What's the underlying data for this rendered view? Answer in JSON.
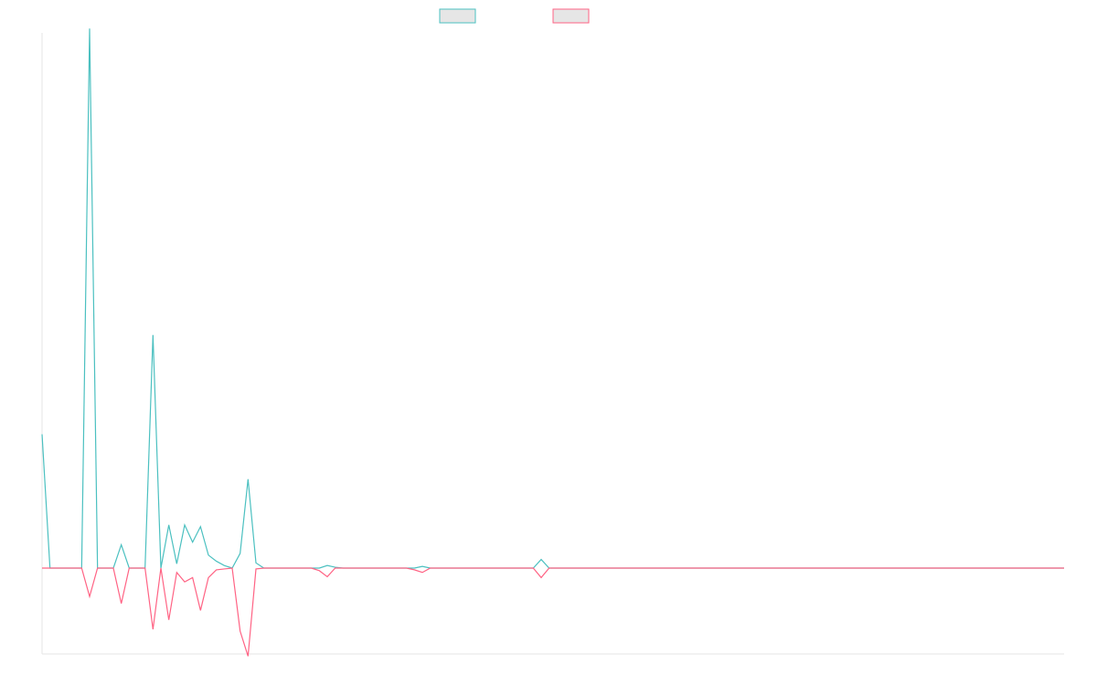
{
  "chart_data": {
    "type": "line",
    "title": "",
    "xlabel": "",
    "ylabel": "",
    "grid": false,
    "legend_position": "top-center",
    "colors": {
      "series_a": "#4bc0c0",
      "series_b": "#ff6384",
      "legend_fill": "#e6e6e6",
      "axis": "#e5e5e5"
    },
    "ylim": [
      -100,
      620
    ],
    "x": [
      0,
      1,
      2,
      3,
      4,
      5,
      6,
      7,
      8,
      9,
      10,
      11,
      12,
      13,
      14,
      15,
      16,
      17,
      18,
      19,
      20,
      21,
      22,
      23,
      24,
      25,
      26,
      27,
      28,
      29,
      30,
      31,
      32,
      33,
      34,
      35,
      36,
      37,
      38,
      39,
      40,
      41,
      42,
      43,
      44,
      45,
      46,
      47,
      48,
      49,
      50,
      51,
      52,
      53,
      54,
      55,
      56,
      57,
      58,
      59,
      60,
      61,
      62,
      63,
      64,
      65,
      66,
      67,
      68,
      69,
      70,
      71,
      72,
      73,
      74,
      75,
      76,
      77,
      78,
      79,
      80,
      81,
      82,
      83,
      84,
      85,
      86,
      87,
      88,
      89,
      90,
      91,
      92,
      93,
      94,
      95,
      96,
      97,
      98,
      99,
      100,
      101,
      102,
      103,
      104,
      105,
      106,
      107,
      108,
      109,
      110,
      111,
      112,
      113,
      114,
      115,
      116,
      117,
      118,
      119,
      120,
      121,
      122,
      123,
      124,
      125,
      126,
      127,
      128,
      129
    ],
    "series": [
      {
        "values": [
          155,
          0,
          0,
          0,
          0,
          0,
          625,
          0,
          0,
          0,
          27,
          0,
          0,
          0,
          270,
          0,
          50,
          5,
          50,
          30,
          48,
          15,
          8,
          3,
          0,
          17,
          103,
          6,
          0,
          0,
          0,
          0,
          0,
          0,
          0,
          0,
          3,
          1,
          0,
          0,
          0,
          0,
          0,
          0,
          0,
          0,
          0,
          0,
          2,
          0,
          0,
          0,
          0,
          0,
          0,
          0,
          0,
          0,
          0,
          0,
          0,
          0,
          0,
          10,
          0,
          0,
          0,
          0,
          0,
          0,
          0,
          0,
          0,
          0,
          0,
          0,
          0,
          0,
          0,
          0,
          0,
          0,
          0,
          0,
          0,
          0,
          0,
          0,
          0,
          0,
          0,
          0,
          0,
          0,
          0,
          0,
          0,
          0,
          0,
          0,
          0,
          0,
          0,
          0,
          0,
          0,
          0,
          0,
          0,
          0,
          0,
          0,
          0,
          0,
          0,
          0,
          0,
          0,
          0,
          0,
          0,
          0,
          0,
          0,
          0,
          0,
          0,
          0,
          0,
          0
        ]
      },
      {
        "values": [
          0,
          0,
          0,
          0,
          0,
          0,
          -33,
          0,
          0,
          0,
          -41,
          0,
          0,
          0,
          -71,
          0,
          -60,
          -5,
          -16,
          -11,
          -49,
          -11,
          -2,
          -1,
          0,
          -73,
          -102,
          -1,
          0,
          0,
          0,
          0,
          0,
          0,
          0,
          -3,
          -10,
          0,
          0,
          0,
          0,
          0,
          0,
          0,
          0,
          0,
          0,
          -2,
          -5,
          0,
          0,
          0,
          0,
          0,
          0,
          0,
          0,
          0,
          0,
          0,
          0,
          0,
          0,
          -11,
          0,
          0,
          0,
          0,
          0,
          0,
          0,
          0,
          0,
          0,
          0,
          0,
          0,
          0,
          0,
          0,
          0,
          0,
          0,
          0,
          0,
          0,
          0,
          0,
          0,
          0,
          0,
          0,
          0,
          0,
          0,
          0,
          0,
          0,
          0,
          0,
          0,
          0,
          0,
          0,
          0,
          0,
          0,
          0,
          0,
          0,
          0,
          0,
          0,
          0,
          0,
          0,
          0,
          0,
          0,
          0,
          0,
          0,
          0,
          0,
          0,
          0,
          0,
          0,
          0,
          0
        ]
      }
    ]
  }
}
